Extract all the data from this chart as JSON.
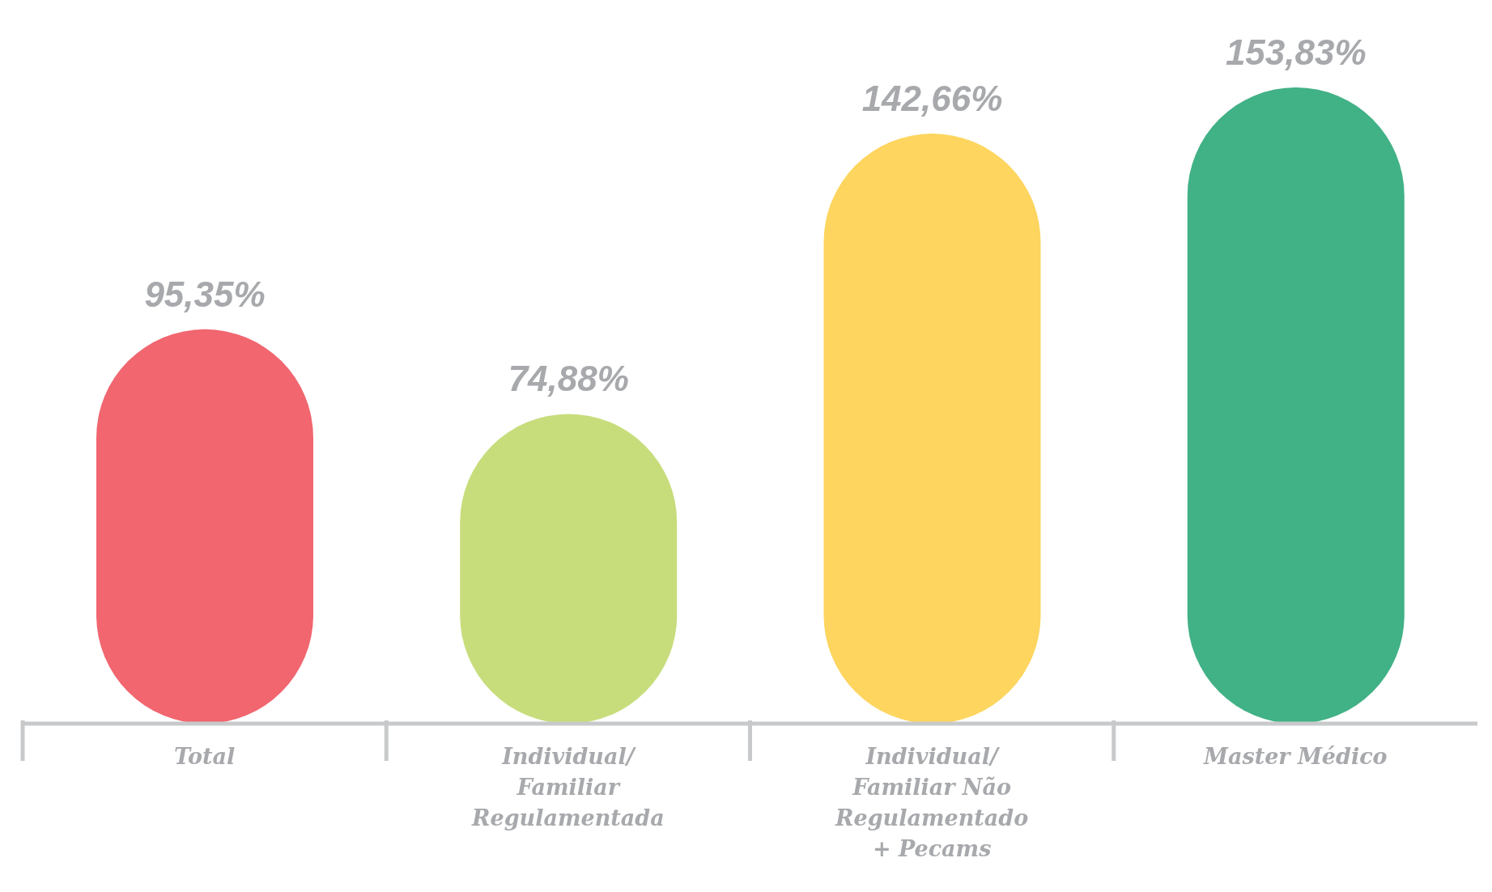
{
  "chart_data": {
    "type": "bar",
    "categories": [
      "Total",
      "Individual/ Familiar Regulamentada",
      "Individual/ Familiar Não Regulamentado + Pecams",
      "Master Médico"
    ],
    "values": [
      95.35,
      74.88,
      142.66,
      153.83
    ],
    "colors": [
      "#f1666f",
      "#c7dd7c",
      "#fdd55f",
      "#41b186"
    ],
    "value_labels": [
      "95,35%",
      "74,88%",
      "142,66%",
      "153,83%"
    ]
  }
}
